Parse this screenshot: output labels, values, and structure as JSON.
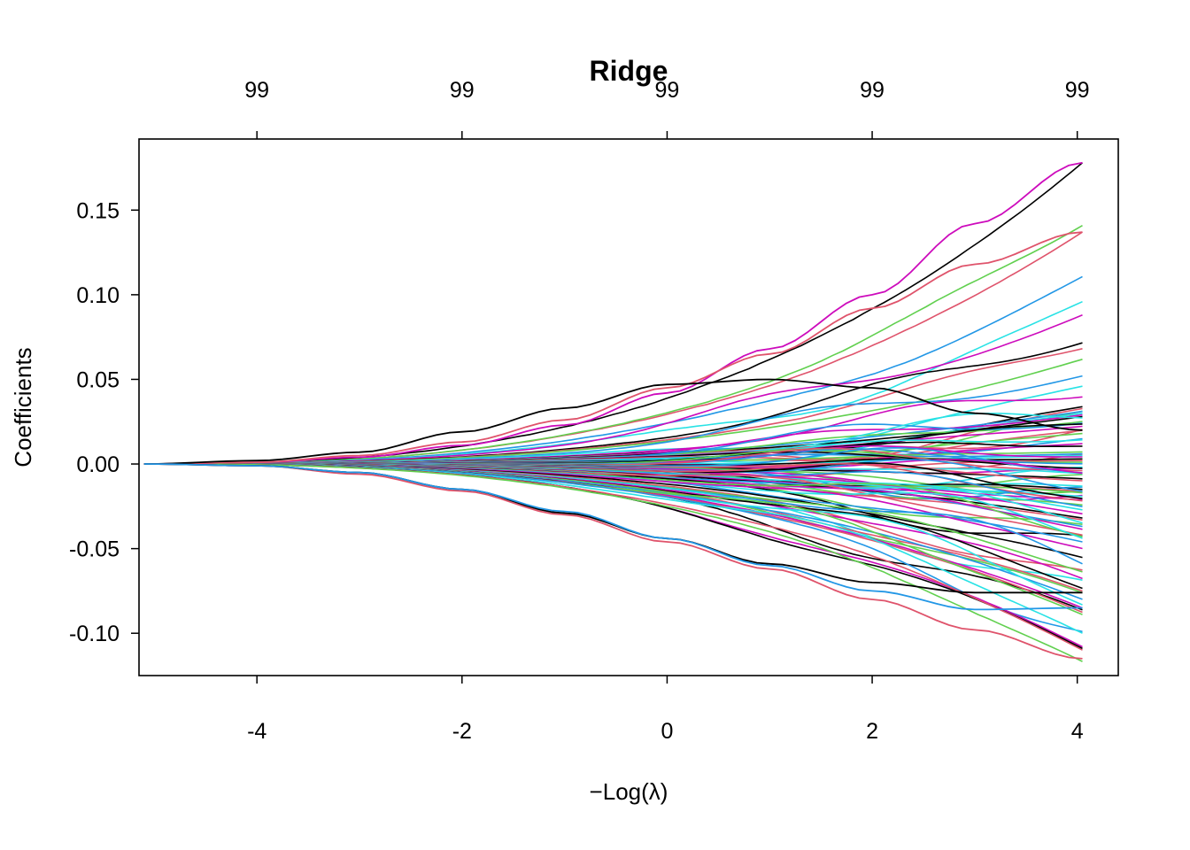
{
  "chart_data": {
    "type": "line",
    "title": "Ridge",
    "xlabel": "−Log(λ)",
    "ylabel": "Coefficients",
    "xlim": [
      -5.15,
      4.4
    ],
    "ylim": [
      -0.125,
      0.192
    ],
    "x_ticks": [
      -4,
      -2,
      0,
      2,
      4
    ],
    "x_tick_labels": [
      "-4",
      "-2",
      "0",
      "2",
      "4"
    ],
    "y_ticks": [
      -0.1,
      -0.05,
      0.0,
      0.05,
      0.1,
      0.15
    ],
    "y_tick_labels": [
      "-0.10",
      "-0.05",
      "0.00",
      "0.05",
      "0.10",
      "0.15"
    ],
    "top_ticks": [
      -4,
      -2,
      0,
      2,
      4
    ],
    "top_tick_labels": [
      "99",
      "99",
      "99",
      "99",
      "99"
    ],
    "grid": false,
    "legend": "none",
    "x_range": [
      -5.1,
      4.05
    ],
    "n_series": 99,
    "palette": [
      "#000000",
      "#DF536B",
      "#61D04F",
      "#2297E6",
      "#28E2E5",
      "#CD0BBC"
    ],
    "series_end_values": [
      0.178,
      0.137,
      0.139,
      0.111,
      0.096,
      0.088,
      0.071,
      0.066,
      0.062,
      0.052,
      0.046,
      0.038,
      0.034,
      0.033,
      0.032,
      0.031,
      0.03,
      0.029,
      0.028,
      0.026,
      0.025,
      0.024,
      0.023,
      0.022,
      0.021,
      0.02,
      0.018,
      0.016,
      0.014,
      0.012,
      0.01,
      0.008,
      0.007,
      0.006,
      0.005,
      0.004,
      0.003,
      0.002,
      0.001,
      0.0,
      -0.001,
      -0.002,
      -0.003,
      -0.004,
      -0.005,
      -0.006,
      -0.007,
      -0.008,
      -0.009,
      -0.01,
      -0.011,
      -0.012,
      -0.013,
      -0.014,
      -0.015,
      -0.016,
      -0.017,
      -0.018,
      -0.019,
      -0.02,
      -0.021,
      -0.022,
      -0.024,
      -0.026,
      -0.028,
      -0.03,
      -0.032,
      -0.033,
      -0.035,
      -0.037,
      -0.038,
      -0.039,
      -0.04,
      -0.042,
      -0.044,
      -0.046,
      -0.048,
      -0.05,
      -0.055,
      -0.06,
      -0.064,
      -0.065,
      -0.066,
      -0.07,
      -0.074,
      -0.075,
      -0.076,
      -0.08,
      -0.084,
      -0.085,
      -0.086,
      -0.088,
      -0.089,
      -0.09,
      -0.1,
      -0.108,
      -0.109,
      -0.11,
      -0.115
    ],
    "highlighted_series": [
      {
        "x": [
          -5.1,
          -4,
          -3,
          -2,
          -1,
          0,
          1,
          2,
          3,
          4.05
        ],
        "values": [
          0.0,
          0.001,
          0.004,
          0.011,
          0.023,
          0.042,
          0.068,
          0.1,
          0.142,
          0.178
        ],
        "color": "#CD0BBC"
      },
      {
        "x": [
          -5.1,
          -4,
          -3,
          -2,
          -1,
          0,
          1,
          2,
          3,
          4.05
        ],
        "values": [
          0.0,
          0.001,
          0.005,
          0.013,
          0.026,
          0.045,
          0.065,
          0.092,
          0.118,
          0.137
        ],
        "color": "#DF536B"
      },
      {
        "x": [
          -5.1,
          -4,
          -3,
          -2,
          -1,
          0,
          1,
          2,
          3,
          4.05
        ],
        "values": [
          0.0,
          0.002,
          0.007,
          0.019,
          0.033,
          0.047,
          0.05,
          0.045,
          0.03,
          0.02
        ],
        "color": "#000000"
      },
      {
        "x": [
          -5.1,
          -4,
          -3,
          -2,
          -1,
          0,
          1,
          2,
          3,
          4.05
        ],
        "values": [
          0.0,
          -0.001,
          -0.006,
          -0.016,
          -0.03,
          -0.046,
          -0.062,
          -0.08,
          -0.098,
          -0.115
        ],
        "color": "#DF536B"
      },
      {
        "x": [
          -5.1,
          -4,
          -3,
          -2,
          -1,
          0,
          1,
          2,
          3,
          4.05
        ],
        "values": [
          0.0,
          -0.001,
          -0.005,
          -0.015,
          -0.029,
          -0.044,
          -0.059,
          -0.07,
          -0.076,
          -0.076
        ],
        "color": "#000000"
      },
      {
        "x": [
          -5.1,
          -4,
          -3,
          -2,
          -1,
          0,
          1,
          2,
          3,
          4.05
        ],
        "values": [
          0.0,
          -0.001,
          -0.005,
          -0.015,
          -0.028,
          -0.044,
          -0.06,
          -0.075,
          -0.086,
          -0.085
        ],
        "color": "#2297E6"
      }
    ]
  }
}
